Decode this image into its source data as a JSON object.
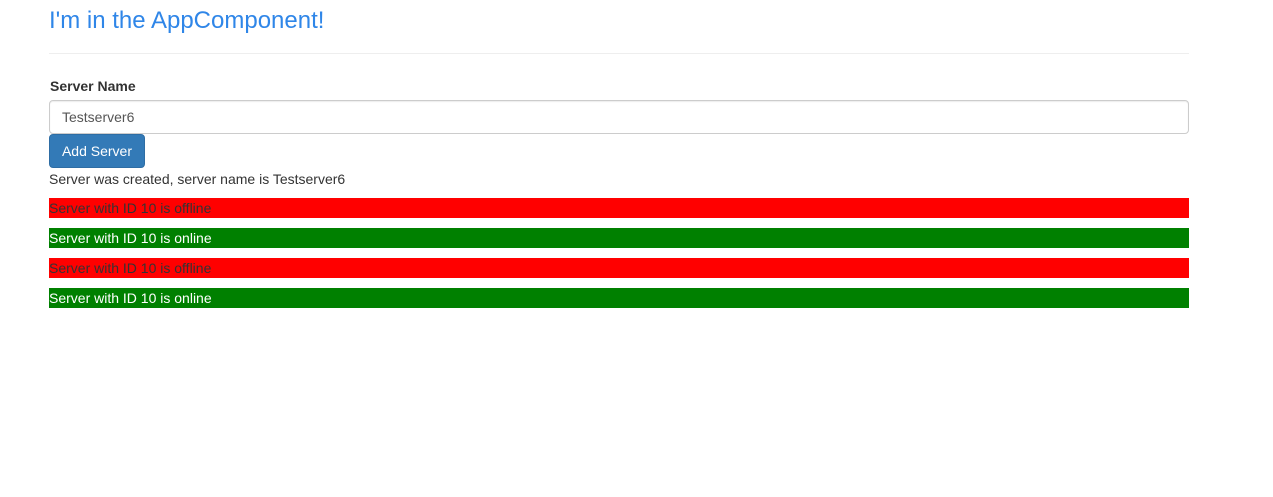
{
  "app": {
    "title": "I'm in the AppComponent!"
  },
  "form": {
    "label": "Server Name",
    "input_value": "Testserver6",
    "button_label": "Add Server"
  },
  "status": {
    "message": "Server was created, server name is Testserver6"
  },
  "servers": [
    {
      "text": "Server with ID 10 is offline",
      "status": "offline"
    },
    {
      "text": "Server with ID 10 is online",
      "status": "online"
    },
    {
      "text": "Server with ID 10 is offline",
      "status": "offline"
    },
    {
      "text": "Server with ID 10 is online",
      "status": "online"
    }
  ],
  "colors": {
    "title": "#2f86e8",
    "button": "#337ab7",
    "offline": "#ff0000",
    "online": "#008000"
  }
}
